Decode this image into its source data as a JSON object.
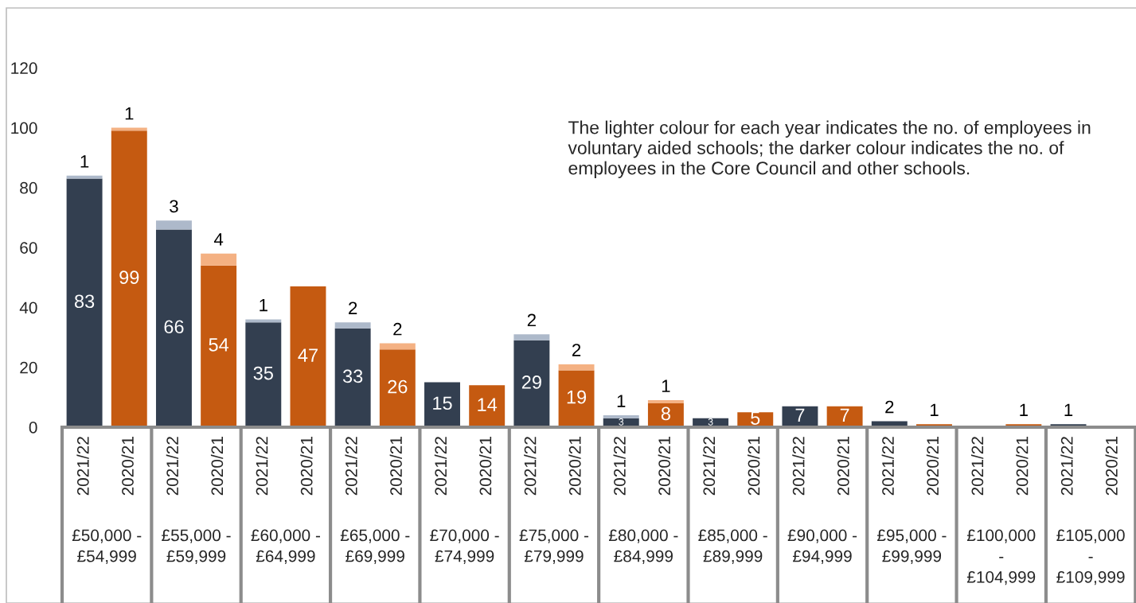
{
  "chart_data": {
    "type": "bar",
    "stacked": true,
    "categories": [
      "2021/22",
      "2020/21",
      "2021/22",
      "2020/21",
      "2021/22",
      "2020/21",
      "2021/22",
      "2020/21",
      "2021/22",
      "2020/21",
      "2021/22",
      "2020/21",
      "2021/22",
      "2020/21",
      "2021/22",
      "2020/21",
      "2021/22",
      "2020/21",
      "2021/22",
      "2020/21",
      "2021/22",
      "2020/21",
      "2021/22",
      "2020/21"
    ],
    "series": [
      {
        "colors": [
          "#333f50",
          "#c55a11",
          "#333f50",
          "#c55a11",
          "#333f50",
          "#c55a11",
          "#333f50",
          "#c55a11",
          "#333f50",
          "#c55a11",
          "#333f50",
          "#c55a11",
          "#333f50",
          "#c55a11",
          "#333f50",
          "#c55a11",
          "#333f50",
          "#c55a11",
          "#333f50",
          "#c55a11",
          "#333f50",
          "#c55a11",
          "#333f50",
          "#c55a11"
        ],
        "values": [
          83,
          99,
          66,
          54,
          35,
          47,
          33,
          26,
          15,
          14,
          29,
          19,
          3,
          8,
          3,
          5,
          7,
          7,
          2,
          1,
          null,
          1,
          1,
          null
        ],
        "value_labels": [
          "83",
          "99",
          "66",
          "54",
          "35",
          "47",
          "33",
          "26",
          "15",
          "14",
          "29",
          "19",
          "3",
          "8",
          "3",
          "5",
          "7",
          "7",
          "2",
          "1",
          null,
          "1",
          "1",
          null
        ]
      },
      {
        "colors": [
          "#adb9ca",
          "#f4b183",
          "#adb9ca",
          "#f4b183",
          "#adb9ca",
          "#f4b183",
          "#adb9ca",
          "#f4b183",
          "#adb9ca",
          "#f4b183",
          "#adb9ca",
          "#f4b183",
          "#adb9ca",
          "#f4b183",
          "#adb9ca",
          "#f4b183",
          "#adb9ca",
          "#f4b183",
          "#adb9ca",
          "#f4b183",
          "#adb9ca",
          "#f4b183",
          "#adb9ca",
          "#f4b183"
        ],
        "values": [
          1,
          1,
          3,
          4,
          1,
          null,
          2,
          2,
          null,
          null,
          2,
          2,
          1,
          1,
          null,
          null,
          null,
          null,
          null,
          null,
          null,
          null,
          null,
          null
        ],
        "value_labels": [
          "1",
          "1",
          "3",
          "4",
          "1",
          null,
          "2",
          "2",
          null,
          null,
          "2",
          "2",
          "1",
          "1",
          null,
          null,
          null,
          null,
          null,
          null,
          null,
          null,
          null,
          null
        ]
      }
    ],
    "ylim": [
      0,
      140
    ],
    "yticks": [
      0,
      20,
      40,
      60,
      80,
      100,
      120
    ],
    "grid": false,
    "legend": false,
    "annotations": [
      "The lighter colour for each year indicates the no. of employees in voluntary aided schools; the darker colour indicates the no. of employees in the Core Council and other schools.",
      "£50,000 - £54,999",
      "£55,000 - £59,999",
      "£60,000 - £64,999",
      "£65,000 - £69,999",
      "£70,000 - £74,999",
      "£75,000 - £79,999",
      "£80,000 - £84,999",
      "£85,000 - £89,999",
      "£90,000 - £94,999",
      "£95,000 - £99,999",
      "£100,000 - £104,999",
      "£105,000 - £109,999"
    ]
  }
}
